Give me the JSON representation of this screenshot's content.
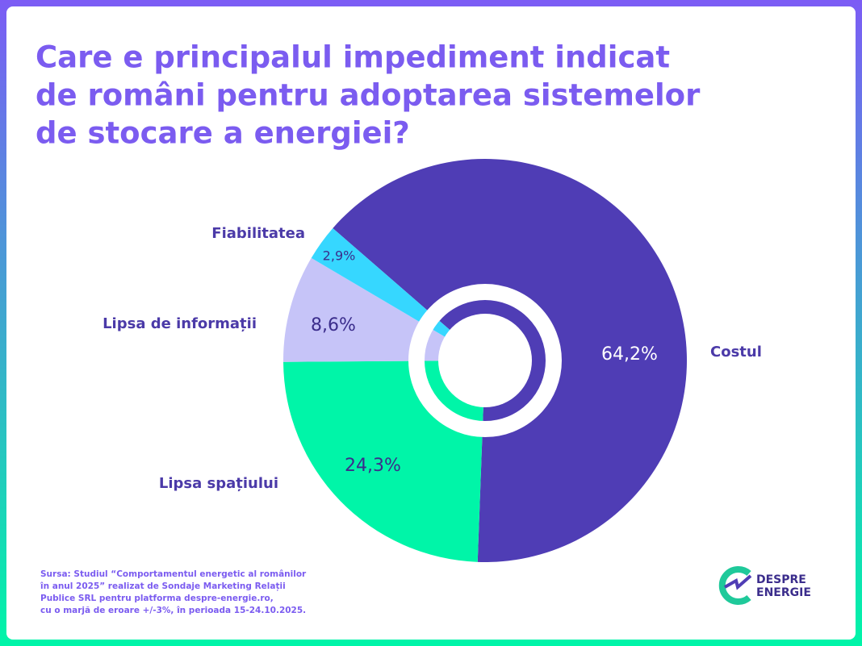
{
  "chart_data": {
    "type": "donut",
    "title": [
      "Care e principalul impediment indicat",
      "de români pentru adoptarea sistemelor",
      "de stocare a energiei?"
    ],
    "categories": [
      "Costul",
      "Lipsa spațiului",
      "Lipsa de informații",
      "Fiabilitatea"
    ],
    "values": [
      64.2,
      24.3,
      8.6,
      2.9
    ],
    "value_labels": [
      "64,2%",
      "24,3%",
      "8,6%",
      "2,9%"
    ],
    "colors": [
      "#4f3db5",
      "#00f5a8",
      "#c6c4f8",
      "#36d7ff"
    ],
    "source": [
      "Sursa: Studiul “Comportamentul energetic al românilor",
      "în anul 2025” realizat de Sondaje Marketing Relații",
      "Publice SRL pentru platforma despre-energie.ro,",
      "cu o marjă de eroare +/-3%, în perioada 15-24.10.2025."
    ],
    "logo": [
      "DESPRE",
      "ENERGIE"
    ]
  }
}
